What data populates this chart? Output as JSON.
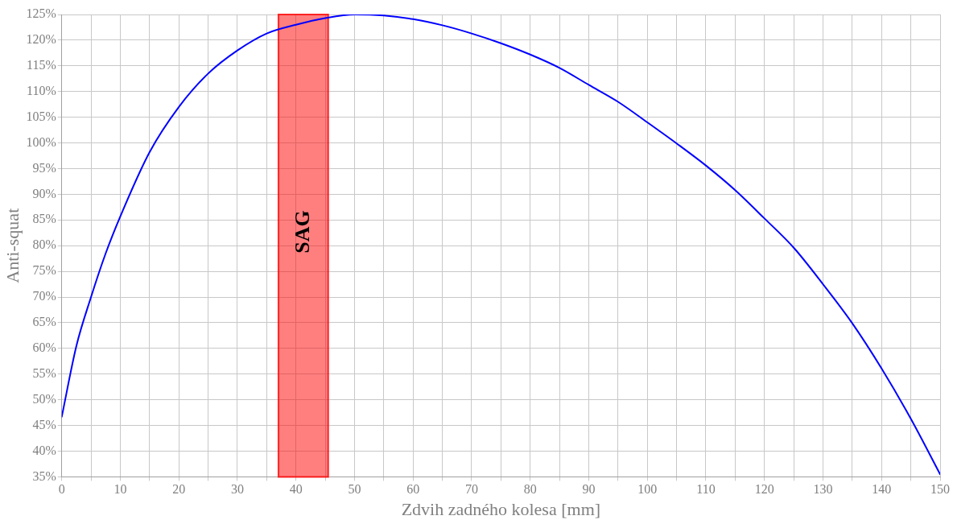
{
  "chart_data": {
    "type": "line",
    "xlabel": "Zdvih zadného kolesa [mm]",
    "ylabel": "Anti-squat",
    "x": [
      0,
      2.5,
      5,
      7.5,
      10,
      15,
      20,
      25,
      30,
      35,
      40,
      45,
      50,
      55,
      60,
      65,
      70,
      75,
      80,
      85,
      90,
      95,
      100,
      105,
      110,
      115,
      120,
      125,
      130,
      135,
      140,
      145,
      150
    ],
    "series": [
      {
        "color": "#0000ff",
        "values": [
          46.7,
          60.5,
          70,
          78.5,
          85.7,
          98.2,
          107,
          113.5,
          118,
          121.3,
          123,
          124.3,
          125,
          124.8,
          124.1,
          122.9,
          121.3,
          119.4,
          117.2,
          114.6,
          111.3,
          108,
          104,
          99.9,
          95.6,
          90.8,
          85.3,
          79.6,
          72.5,
          64.9,
          56.1,
          46.3,
          35.5
        ]
      }
    ],
    "xlim": [
      0,
      150
    ],
    "xticks": [
      0,
      {
        "value": 5,
        "label": null
      },
      10,
      {
        "value": 15,
        "label": null
      },
      20,
      {
        "value": 25,
        "label": null
      },
      30,
      {
        "value": 35,
        "label": null
      },
      40,
      {
        "value": 45,
        "label": null
      },
      50,
      {
        "value": 55,
        "label": null
      },
      60,
      {
        "value": 65,
        "label": null
      },
      70,
      {
        "value": 75,
        "label": null
      },
      80,
      {
        "value": 85,
        "label": null
      },
      90,
      {
        "value": 95,
        "label": null
      },
      100,
      {
        "value": 105,
        "label": null
      },
      110,
      {
        "value": 115,
        "label": null
      },
      120,
      {
        "value": 125,
        "label": null
      },
      130,
      {
        "value": 135,
        "label": null
      },
      140,
      {
        "value": 145,
        "label": null
      },
      150
    ],
    "ylim": [
      35,
      125
    ],
    "yticks": [
      {
        "value": 35,
        "label": "35%"
      },
      {
        "value": 40,
        "label": "40%"
      },
      {
        "value": 45,
        "label": "45%"
      },
      {
        "value": 50,
        "label": "50%"
      },
      {
        "value": 55,
        "label": "55%"
      },
      {
        "value": 60,
        "label": "60%"
      },
      {
        "value": 65,
        "label": "65%"
      },
      {
        "value": 70,
        "label": "70%"
      },
      {
        "value": 75,
        "label": "75%"
      },
      {
        "value": 80,
        "label": "80%"
      },
      {
        "value": 85,
        "label": "85%"
      },
      {
        "value": 90,
        "label": "90%"
      },
      {
        "value": 95,
        "label": "95%"
      },
      {
        "value": 100,
        "label": "100%"
      },
      {
        "value": 105,
        "label": "105%"
      },
      {
        "value": 110,
        "label": "110%"
      },
      {
        "value": 115,
        "label": "115%"
      },
      {
        "value": 120,
        "label": "120%"
      },
      {
        "value": 125,
        "label": "125%"
      }
    ],
    "bands": [
      {
        "axis": "x",
        "from": 37,
        "to": 45.5,
        "label": "SAG",
        "color": "#ff0000"
      }
    ],
    "grid": true,
    "legend": false,
    "marker": "none",
    "line_style": "solid"
  }
}
